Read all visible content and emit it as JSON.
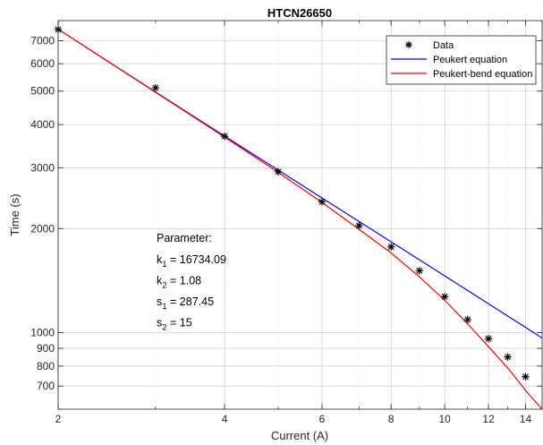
{
  "chart_data": {
    "type": "scatter",
    "title": "HTCN26650",
    "xlabel": "Current (A)",
    "ylabel": "Time (s)",
    "xscale": "log",
    "yscale": "log",
    "xlim": [
      2,
      15
    ],
    "ylim": [
      600,
      8000
    ],
    "grid": true,
    "legend_position": "top-right",
    "x_ticks": [
      2,
      4,
      6,
      8,
      10,
      12,
      14
    ],
    "x_tick_labels": [
      "2",
      "4",
      "6",
      "8",
      "10",
      "12",
      "14"
    ],
    "y_ticks": [
      700,
      800,
      900,
      1000,
      2000,
      3000,
      4000,
      5000,
      6000,
      7000
    ],
    "y_tick_labels": [
      "700",
      "800",
      "900",
      "1000",
      "2000",
      "3000",
      "4000",
      "5000",
      "6000",
      "7000"
    ],
    "series": [
      {
        "name": "Data",
        "kind": "markers",
        "marker": "asterisk",
        "color": "#000000",
        "x": [
          2,
          3,
          4,
          5,
          6,
          7,
          8,
          9,
          10,
          11,
          12,
          13,
          14
        ],
        "y": [
          7540,
          5110,
          3700,
          2920,
          2390,
          2040,
          1770,
          1510,
          1270,
          1090,
          960,
          850,
          745
        ]
      },
      {
        "name": "Peukert equation",
        "kind": "line",
        "color": "#0000ff",
        "x": [
          2,
          3,
          4,
          5,
          6,
          7,
          8,
          9,
          10,
          11,
          12,
          13,
          14,
          15
        ],
        "y": [
          7555,
          4969,
          3703,
          2952,
          2453,
          2097,
          1831,
          1624,
          1459,
          1324,
          1212,
          1116,
          1035,
          964
        ]
      },
      {
        "name": "Peukert-bend equation",
        "kind": "line",
        "color": "#ff0000",
        "x": [
          2,
          3,
          4,
          5,
          6,
          7,
          8,
          9,
          10,
          11,
          12,
          13,
          14,
          15
        ],
        "y": [
          7555,
          4960,
          3680,
          2910,
          2380,
          1990,
          1700,
          1450,
          1240,
          1060,
          910,
          790,
          680,
          600
        ]
      }
    ],
    "annotation": {
      "heading": "Parameter:",
      "lines": [
        {
          "name": "k",
          "sub": "1",
          "value": " = 16734.09"
        },
        {
          "name": "k",
          "sub": "2",
          "value": " = 1.08"
        },
        {
          "name": "s",
          "sub": "1",
          "value": " = 287.45"
        },
        {
          "name": "s",
          "sub": "2",
          "value": " = 15"
        }
      ]
    }
  }
}
